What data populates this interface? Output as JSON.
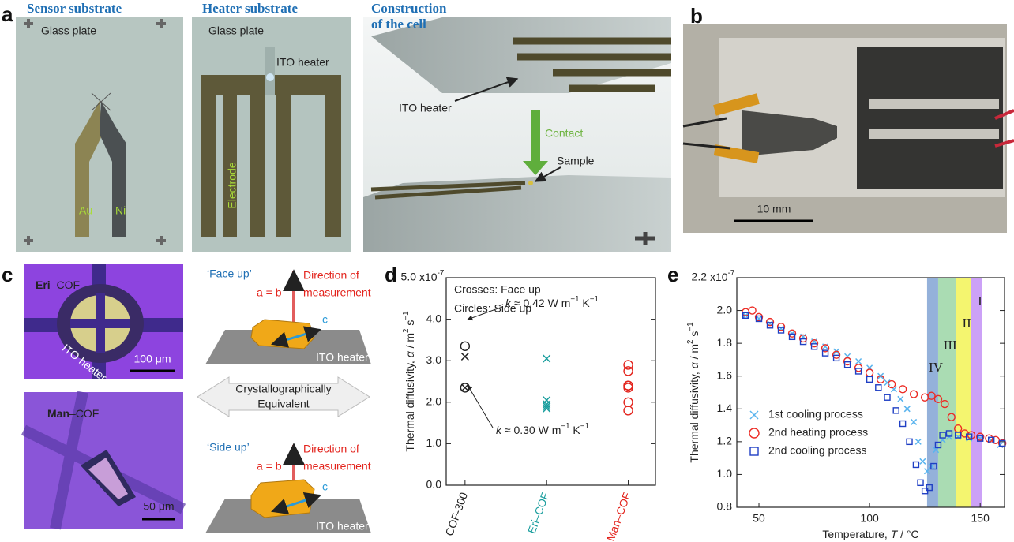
{
  "figure": {
    "a": {
      "label": "a",
      "sensor_title": "Sensor substrate",
      "sensor_plate": "Glass plate",
      "au": "Au",
      "ni": "Ni",
      "heater_title": "Heater substrate",
      "heater_plate": "Glass plate",
      "heater_ito": "ITO heater",
      "electrode": "Electrode",
      "cell_title": [
        "Construction",
        "of the cell"
      ],
      "cell_ito": "ITO heater",
      "contact": "Contact",
      "sample": "Sample"
    },
    "b": {
      "label": "b",
      "scale": "10 mm"
    },
    "c": {
      "label": "c",
      "eri": [
        "Eri",
        "–COF"
      ],
      "eri_heater": "ITO heater",
      "eri_scale": "100 μm",
      "man": [
        "Man",
        "–COF"
      ],
      "man_scale": "50 μm",
      "face_up": {
        "title": "‘Face up’",
        "direction": [
          "Direction of",
          "measurement"
        ],
        "ab": "a = b",
        "axis": "c",
        "substrate": "ITO heater"
      },
      "equivalent": [
        "Crystallographically",
        "Equivalent"
      ],
      "side_up": {
        "title": "‘Side up’",
        "direction": [
          "Direction of",
          "measurement"
        ],
        "ab": "a = b",
        "axis": "c",
        "substrate": "ITO heater"
      }
    }
  },
  "chart_data": [
    {
      "type": "scatter",
      "label": "d",
      "categories": [
        "COF-300",
        "Eri–COF",
        "Man–COF"
      ],
      "category_colors": [
        "#222222",
        "#1a9e9e",
        "#e3231c"
      ],
      "series": [
        {
          "marker": "cross",
          "values": [
            [
              3.1,
              2.35
            ],
            [
              3.05,
              2.05,
              1.95,
              1.9,
              1.85
            ],
            []
          ]
        },
        {
          "marker": "circle",
          "values": [
            [
              3.35,
              2.35
            ],
            [],
            [
              2.9,
              2.75,
              2.4,
              2.4,
              2.35,
              2.0,
              1.8
            ]
          ]
        }
      ],
      "notes": [
        "Crosses: Face up",
        "Circles: Side up"
      ],
      "annotations": [
        [
          {
            "text": "k",
            "style": "italic"
          },
          {
            "text": " ≈ 0.42 W m"
          },
          {
            "text": "−1",
            "style": "sup"
          },
          {
            "text": " K"
          },
          {
            "text": "−1",
            "style": "sup"
          }
        ],
        [
          {
            "text": "k",
            "style": "italic"
          },
          {
            "text": " ≈ 0.30 W m"
          },
          {
            "text": "−1",
            "style": "sup"
          },
          {
            "text": " K"
          },
          {
            "text": "−1",
            "style": "sup"
          }
        ]
      ],
      "ylabel": [
        {
          "text": "Thermal diffusivity, "
        },
        {
          "text": "α",
          "style": "italic"
        },
        {
          "text": " / m"
        },
        {
          "text": "2",
          "style": "sup"
        },
        {
          "text": " s"
        },
        {
          "text": "−1",
          "style": "sup"
        }
      ],
      "ylim": [
        0,
        5
      ],
      "yticks": [
        {
          "value": 0,
          "label": "0.0"
        },
        {
          "value": 1,
          "label": "1.0"
        },
        {
          "value": 2,
          "label": "2.0"
        },
        {
          "value": 3,
          "label": "3.0"
        },
        {
          "value": 4,
          "label": "4.0"
        },
        {
          "value": 5,
          "label": "5.0"
        }
      ],
      "y_multiplier": [
        {
          "text": "x10"
        },
        {
          "text": "-7",
          "style": "sup"
        }
      ]
    },
    {
      "type": "scatter",
      "label": "e",
      "xlabel": [
        {
          "text": "Temperature, "
        },
        {
          "text": "T",
          "style": "italic"
        },
        {
          "text": " / °C"
        }
      ],
      "ylabel": [
        {
          "text": "Thermal diffusivity, "
        },
        {
          "text": "α",
          "style": "italic"
        },
        {
          "text": " / m"
        },
        {
          "text": "2",
          "style": "sup"
        },
        {
          "text": " s"
        },
        {
          "text": "−1",
          "style": "sup"
        }
      ],
      "xlim": [
        40,
        161
      ],
      "xticks": [
        50,
        100,
        150
      ],
      "ylim": [
        0.8,
        2.2
      ],
      "yticks": [
        0.8,
        {
          "value": 1,
          "label": "1.0"
        },
        1.2,
        1.4,
        1.6,
        1.8,
        {
          "value": 2,
          "label": "2.0"
        },
        2.2
      ],
      "y_multiplier": [
        {
          "text": "x10"
        },
        {
          "text": "-7",
          "style": "sup"
        }
      ],
      "regions": [
        {
          "label": "I",
          "range": [
            146,
            151
          ],
          "color": "#b06ff2"
        },
        {
          "label": "II",
          "range": [
            139,
            146
          ],
          "color": "#eef022"
        },
        {
          "label": "III",
          "range": [
            131,
            139
          ],
          "color": "#7cc98a"
        },
        {
          "label": "IV",
          "range": [
            126,
            131
          ],
          "color": "#5b87c6"
        }
      ],
      "legend": "lower left",
      "series": [
        {
          "name": "1st cooling process",
          "color": "#5ab4ee",
          "marker": "cross",
          "x": [
            44,
            50,
            55,
            60,
            65,
            70,
            75,
            80,
            85,
            90,
            95,
            100,
            105,
            108,
            111,
            114,
            117,
            120,
            122,
            124,
            126,
            128,
            130,
            133,
            136,
            140,
            145,
            150,
            155,
            159
          ],
          "values": [
            1.97,
            1.95,
            1.92,
            1.89,
            1.86,
            1.84,
            1.81,
            1.78,
            1.75,
            1.72,
            1.69,
            1.65,
            1.6,
            1.56,
            1.52,
            1.46,
            1.4,
            1.32,
            1.2,
            1.08,
            1.02,
            1.05,
            1.15,
            1.21,
            1.23,
            1.23,
            1.22,
            1.22,
            1.21,
            1.18
          ]
        },
        {
          "name": "2nd heating process",
          "color": "#ec2b24",
          "marker": "circle",
          "x": [
            44,
            47,
            50,
            55,
            60,
            65,
            70,
            75,
            80,
            85,
            90,
            95,
            100,
            105,
            110,
            115,
            120,
            125,
            128,
            131,
            134,
            137,
            140,
            143,
            146,
            150,
            154,
            157,
            160
          ],
          "values": [
            1.99,
            2.0,
            1.96,
            1.93,
            1.9,
            1.86,
            1.83,
            1.8,
            1.77,
            1.73,
            1.69,
            1.65,
            1.62,
            1.58,
            1.55,
            1.52,
            1.49,
            1.47,
            1.48,
            1.46,
            1.43,
            1.35,
            1.28,
            1.25,
            1.24,
            1.23,
            1.22,
            1.21,
            1.19
          ]
        },
        {
          "name": "2nd cooling process",
          "color": "#1f3fc4",
          "marker": "square",
          "x": [
            44,
            50,
            55,
            60,
            65,
            70,
            75,
            80,
            85,
            90,
            95,
            100,
            104,
            108,
            112,
            115,
            118,
            121,
            123,
            125,
            127,
            129,
            131,
            133,
            136,
            140,
            145,
            150,
            155,
            160
          ],
          "values": [
            1.97,
            1.95,
            1.91,
            1.88,
            1.84,
            1.81,
            1.78,
            1.74,
            1.71,
            1.67,
            1.63,
            1.58,
            1.53,
            1.47,
            1.39,
            1.31,
            1.2,
            1.06,
            0.95,
            0.9,
            0.92,
            1.05,
            1.18,
            1.24,
            1.25,
            1.24,
            1.23,
            1.22,
            1.21,
            1.19
          ]
        }
      ]
    }
  ]
}
